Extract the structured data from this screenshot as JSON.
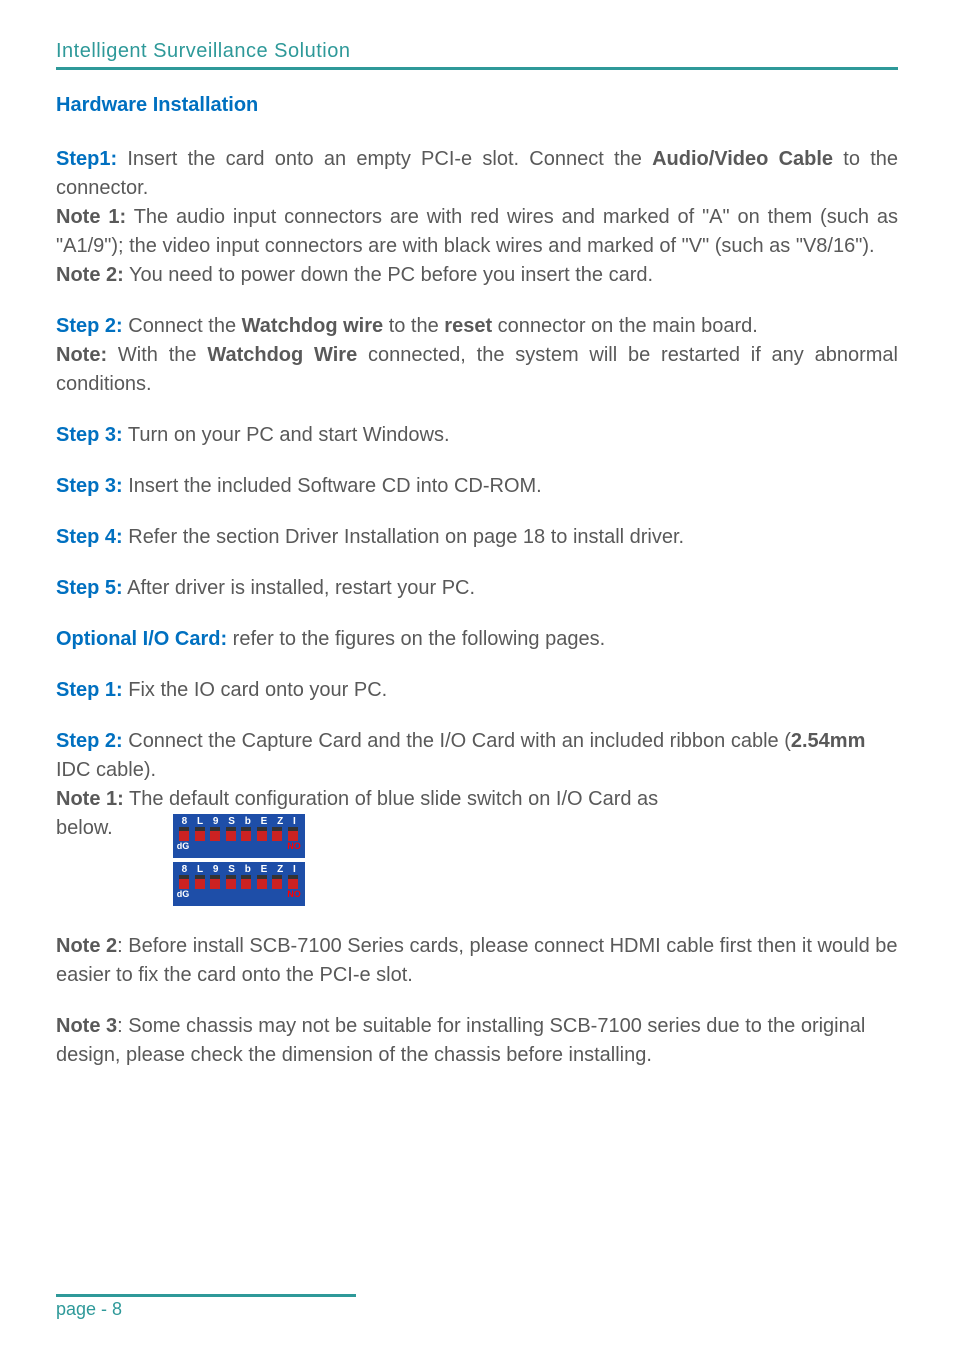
{
  "header": {
    "title": "Intelligent Surveillance Solution"
  },
  "section_title": "Hardware Installation",
  "blocks": [
    {
      "lines": [
        {
          "runs": [
            {
              "t": "Step1:",
              "cls": "step-label"
            },
            {
              "t": " Insert the card onto an empty PCI-e slot. Connect the "
            },
            {
              "t": "Audio/Video Cable",
              "cls": "bold"
            },
            {
              "t": " to the connector."
            }
          ]
        },
        {
          "runs": [
            {
              "t": "Note 1:",
              "cls": "bold"
            },
            {
              "t": " The audio input connectors are with red wires and marked of \"A\" on them (such as \"A1/9\"); the video input connectors are with black wires and marked of \"V\" (such as \"V8/16\")."
            }
          ]
        },
        {
          "runs": [
            {
              "t": "Note 2:",
              "cls": "bold"
            },
            {
              "t": " You need to power down the PC before you insert the card."
            }
          ]
        }
      ]
    },
    {
      "lines": [
        {
          "runs": [
            {
              "t": "Step 2:",
              "cls": "step-label"
            },
            {
              "t": " Connect the "
            },
            {
              "t": "Watchdog wire",
              "cls": "bold"
            },
            {
              "t": " to the "
            },
            {
              "t": "reset",
              "cls": "bold"
            },
            {
              "t": " connector on the main board."
            }
          ]
        },
        {
          "runs": [
            {
              "t": "Note:",
              "cls": "bold"
            },
            {
              "t": " With the "
            },
            {
              "t": "Watchdog Wire",
              "cls": "bold"
            },
            {
              "t": " connected, the system will be restarted if any abnormal conditions."
            }
          ]
        }
      ]
    },
    {
      "lines": [
        {
          "runs": [
            {
              "t": "Step 3:",
              "cls": "step-label"
            },
            {
              "t": " Turn on your PC and start Windows."
            }
          ]
        }
      ]
    },
    {
      "lines": [
        {
          "runs": [
            {
              "t": "Step 3:",
              "cls": "step-label"
            },
            {
              "t": " Insert the included Software CD into CD-ROM."
            }
          ]
        }
      ]
    },
    {
      "lines": [
        {
          "runs": [
            {
              "t": "Step 4:",
              "cls": "step-label"
            },
            {
              "t": " Refer the section Driver Installation on page 18 to install driver."
            }
          ]
        }
      ]
    },
    {
      "lines": [
        {
          "runs": [
            {
              "t": "Step 5:",
              "cls": "step-label"
            },
            {
              "t": " After driver is installed, restart your PC."
            }
          ]
        }
      ]
    },
    {
      "lines": [
        {
          "runs": [
            {
              "t": "Optional I/O Card:",
              "cls": "step-label"
            },
            {
              "t": " refer to the figures on the following pages."
            }
          ]
        }
      ]
    },
    {
      "lines": [
        {
          "runs": [
            {
              "t": "Step 1:",
              "cls": "step-label"
            },
            {
              "t": " Fix the IO card onto your PC."
            }
          ]
        }
      ]
    },
    {
      "lines": [
        {
          "runs": [
            {
              "t": "Step 2:",
              "cls": "step-label"
            },
            {
              "t": " Connect the Capture Card and the I/O Card with an included ribbon cable ("
            },
            {
              "t": "2.54mm",
              "cls": "bold"
            },
            {
              "t": " IDC cable)."
            }
          ],
          "align": "left"
        },
        {
          "runs": [
            {
              "t": "Note 1:",
              "cls": "bold"
            },
            {
              "t": " The default configuration of blue slide switch on I/O Card as"
            }
          ],
          "align": "left"
        }
      ],
      "switch_after": true
    },
    {
      "lines": [
        {
          "runs": [
            {
              "t": "Note 2",
              "cls": "bold"
            },
            {
              "t": ": Before install SCB-7100 Series cards, please connect HDMI cable first then it would be easier to fix the card onto the PCI-e slot."
            }
          ],
          "align": "left"
        }
      ]
    },
    {
      "lines": [
        {
          "runs": [
            {
              "t": "Note 3",
              "cls": "bold"
            },
            {
              "t": ": Some chassis may not be suitable for installing SCB-7100 series due to the original design, please check the dimension of the chassis before installing."
            }
          ],
          "align": "left"
        }
      ]
    }
  ],
  "below_label": "below.",
  "switch": {
    "numbers": [
      "8",
      "L",
      "9",
      "S",
      "b",
      "E",
      "Z",
      "I"
    ],
    "dp": "dG",
    "no": "NO",
    "bg": "#1e4ea8",
    "num_color": "#ffffff",
    "sw_color": "#cc2222",
    "no_color": "#ff0000"
  },
  "footer": {
    "text": "page - 8"
  },
  "colors": {
    "accent": "#2e9999",
    "link": "#0070c0",
    "body": "#595959"
  }
}
